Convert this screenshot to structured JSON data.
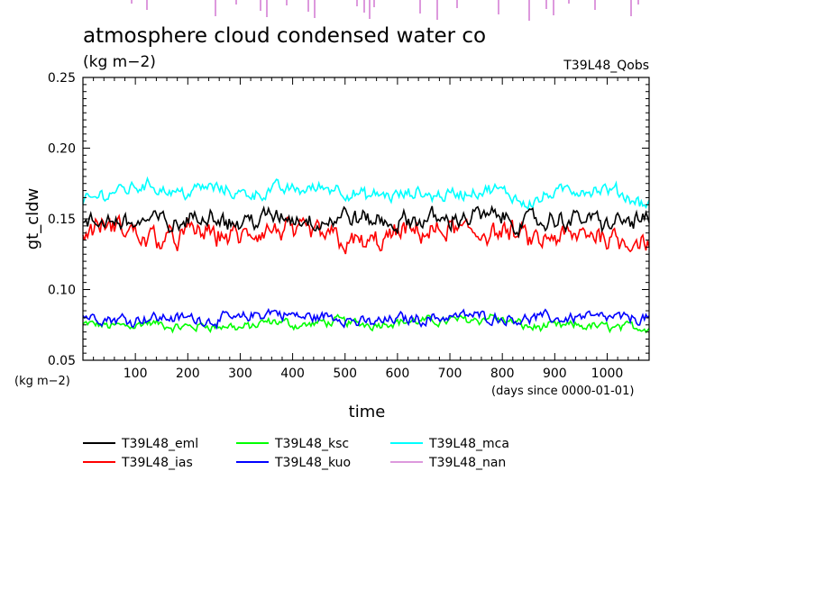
{
  "chart_data": {
    "type": "line",
    "title": "atmosphere cloud condensed water co",
    "units_label": "(kg m−2)",
    "run_label": "T39L48_Qobs",
    "xlabel": "time",
    "xunits": "(days since 0000-01-01)",
    "ylabel": "gt_cldw",
    "yunits": "(kg m−2)",
    "xlim": [
      0,
      1080
    ],
    "ylim": [
      0.05,
      0.25
    ],
    "xticks": [
      "100",
      "200",
      "300",
      "400",
      "500",
      "600",
      "700",
      "800",
      "900",
      "1000"
    ],
    "yticks": [
      "0.05",
      "0.10",
      "0.15",
      "0.20",
      "0.25"
    ],
    "legend_position": "bottom",
    "series": [
      {
        "name": "T39L48_eml",
        "color": "#000000",
        "x": [
          0,
          60,
          120,
          180,
          240,
          300,
          360,
          420,
          480,
          540,
          600,
          660,
          720,
          780,
          840,
          900,
          960,
          1020,
          1080
        ],
        "values": [
          0.143,
          0.148,
          0.149,
          0.146,
          0.153,
          0.148,
          0.151,
          0.149,
          0.15,
          0.15,
          0.146,
          0.149,
          0.151,
          0.152,
          0.147,
          0.148,
          0.15,
          0.147,
          0.15
        ]
      },
      {
        "name": "T39L48_ias",
        "color": "#ff0000",
        "x": [
          0,
          60,
          120,
          180,
          240,
          300,
          360,
          420,
          480,
          540,
          600,
          660,
          720,
          780,
          840,
          900,
          960,
          1020,
          1080
        ],
        "values": [
          0.142,
          0.143,
          0.137,
          0.138,
          0.14,
          0.136,
          0.14,
          0.138,
          0.139,
          0.131,
          0.138,
          0.14,
          0.14,
          0.142,
          0.135,
          0.133,
          0.138,
          0.139,
          0.135
        ]
      },
      {
        "name": "T39L48_ksc",
        "color": "#00ff00",
        "x": [
          0,
          60,
          120,
          180,
          240,
          300,
          360,
          420,
          480,
          540,
          600,
          660,
          720,
          780,
          840,
          900,
          960,
          1020,
          1080
        ],
        "values": [
          0.075,
          0.074,
          0.077,
          0.072,
          0.075,
          0.073,
          0.076,
          0.075,
          0.077,
          0.076,
          0.078,
          0.077,
          0.079,
          0.081,
          0.074,
          0.073,
          0.074,
          0.073,
          0.074
        ]
      },
      {
        "name": "T39L48_kuo",
        "color": "#0000ff",
        "x": [
          0,
          60,
          120,
          180,
          240,
          300,
          360,
          420,
          480,
          540,
          600,
          660,
          720,
          780,
          840,
          900,
          960,
          1020,
          1080
        ],
        "values": [
          0.082,
          0.079,
          0.081,
          0.08,
          0.079,
          0.079,
          0.084,
          0.08,
          0.081,
          0.076,
          0.079,
          0.08,
          0.082,
          0.081,
          0.08,
          0.079,
          0.082,
          0.079,
          0.08
        ]
      },
      {
        "name": "T39L48_mca",
        "color": "#00ffff",
        "x": [
          0,
          60,
          120,
          180,
          240,
          300,
          360,
          420,
          480,
          540,
          600,
          660,
          720,
          780,
          840,
          900,
          960,
          1020,
          1080
        ],
        "values": [
          0.16,
          0.17,
          0.175,
          0.169,
          0.172,
          0.168,
          0.17,
          0.171,
          0.173,
          0.165,
          0.166,
          0.167,
          0.168,
          0.17,
          0.163,
          0.168,
          0.171,
          0.167,
          0.16
        ]
      },
      {
        "name": "T39L48_nan",
        "color": "#dd99dd",
        "x": [],
        "values": []
      }
    ]
  }
}
